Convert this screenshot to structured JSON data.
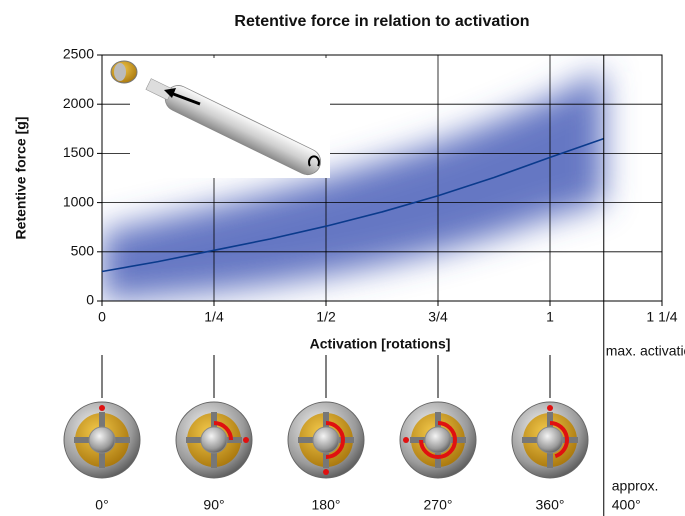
{
  "chart_data": {
    "type": "line",
    "title": "Retentive force in relation to activation",
    "x_label": "Activation [rotations]",
    "y_label": "Retentive force [g]",
    "x": [
      0,
      0.125,
      0.25,
      0.375,
      0.5,
      0.625,
      0.75,
      0.875,
      1,
      1.12
    ],
    "series": [
      {
        "color": "#0a3a8c",
        "values": [
          300,
          400,
          515,
          630,
          760,
          905,
          1070,
          1255,
          1460,
          1650
        ]
      }
    ],
    "band": {
      "color": "#4a5fb8",
      "upper": [
        700,
        830,
        960,
        1100,
        1250,
        1420,
        1600,
        1820,
        2060,
        2350
      ],
      "lower": [
        0,
        50,
        100,
        170,
        260,
        370,
        500,
        660,
        850,
        1000
      ]
    },
    "xlim": [
      0,
      1.25
    ],
    "ylim": [
      0,
      2500
    ],
    "xticks": [
      0,
      {
        "value": 0.25,
        "label": "1/4"
      },
      {
        "value": 0.5,
        "label": "1/2"
      },
      {
        "value": 0.75,
        "label": "3/4"
      },
      1,
      {
        "value": 1.25,
        "label": "1 1/4"
      }
    ],
    "yticks": [
      0,
      500,
      1000,
      1500,
      2000,
      2500
    ],
    "grid": true,
    "max_activation": {
      "label": "max. activation",
      "x": 1.12
    },
    "angle_labels": [
      "0°",
      "90°",
      "180°",
      "270°",
      "360°"
    ],
    "max_angle_label": [
      "approx.",
      "400°"
    ]
  }
}
